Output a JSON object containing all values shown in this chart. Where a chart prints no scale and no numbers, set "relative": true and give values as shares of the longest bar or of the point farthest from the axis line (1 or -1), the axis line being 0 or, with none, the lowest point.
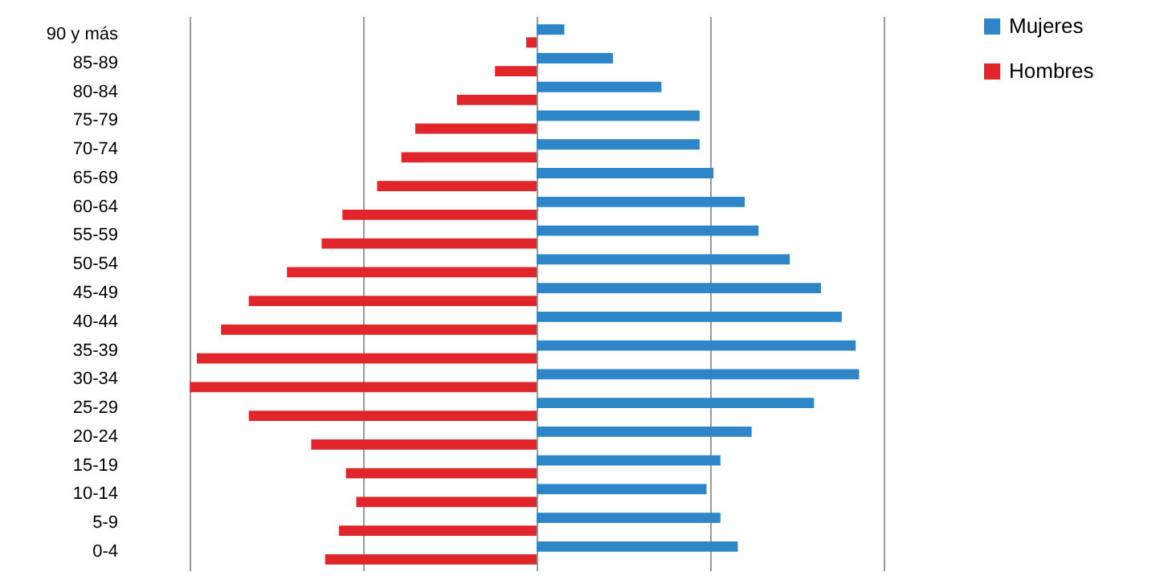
{
  "chart_data": {
    "type": "bar",
    "orientation": "horizontal",
    "relative": true,
    "grid": "x",
    "legend": "right",
    "categories": [
      "90 y más",
      "85-89",
      "80-84",
      "75-79",
      "70-74",
      "65-69",
      "60-64",
      "55-59",
      "50-54",
      "45-49",
      "40-44",
      "35-39",
      "30-34",
      "25-29",
      "20-24",
      "15-19",
      "10-14",
      "5-9",
      "0-4"
    ],
    "series": [
      {
        "name": "Mujeres",
        "color": "#2e86c9",
        "values": [
          0.08,
          0.22,
          0.36,
          0.47,
          0.47,
          0.51,
          0.6,
          0.64,
          0.73,
          0.82,
          0.88,
          0.92,
          0.93,
          0.8,
          0.62,
          0.53,
          0.49,
          0.53,
          0.58
        ]
      },
      {
        "name": "Hombres",
        "color": "#e0262a",
        "values": [
          -0.03,
          -0.12,
          -0.23,
          -0.35,
          -0.39,
          -0.46,
          -0.56,
          -0.62,
          -0.72,
          -0.83,
          -0.91,
          -0.98,
          -1,
          -0.83,
          -0.65,
          -0.55,
          -0.52,
          -0.57,
          -0.61
        ]
      }
    ]
  }
}
